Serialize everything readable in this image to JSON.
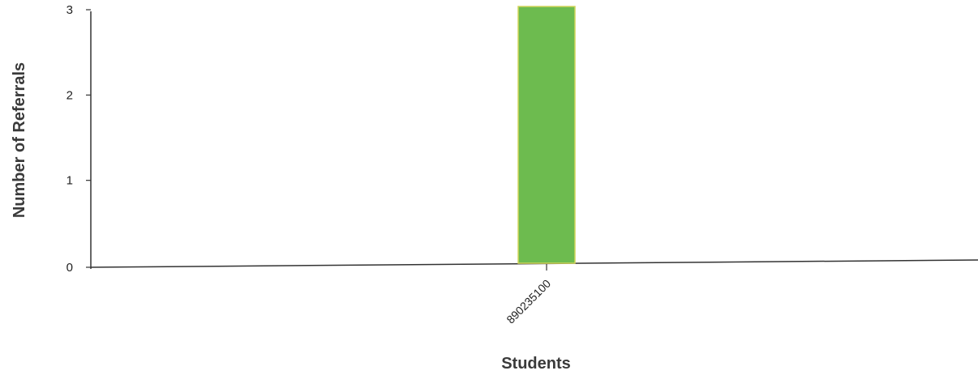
{
  "chart_data": {
    "type": "bar",
    "title": "",
    "xlabel": "Students",
    "ylabel": "Number of Referrals",
    "categories": [
      "890235100"
    ],
    "values": [
      3
    ],
    "ylim": [
      0,
      3
    ],
    "yticks": [
      "0",
      "1",
      "2",
      "3"
    ],
    "grid": false,
    "bar_color": "#6dbb4f",
    "bar_edge_color": "#d2d65a"
  }
}
